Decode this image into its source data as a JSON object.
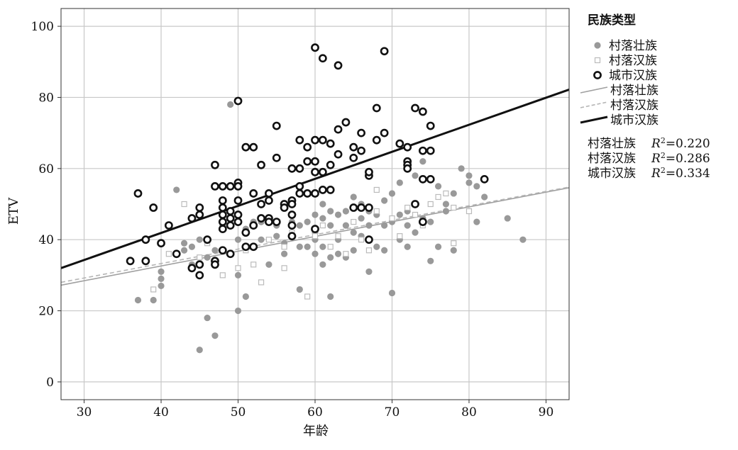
{
  "chart_data": {
    "type": "scatter",
    "xlabel": "年龄",
    "ylabel": "ETV",
    "xlim": [
      27,
      93
    ],
    "ylim": [
      -5,
      105
    ],
    "x_ticks": [
      30,
      40,
      50,
      60,
      70,
      80,
      90
    ],
    "y_ticks": [
      0,
      20,
      40,
      60,
      80,
      100
    ],
    "grid": true,
    "legend_title": "民族类型",
    "legend_position": "right",
    "series": [
      {
        "name": "村落壮族",
        "marker": "filled-circle",
        "color": "#999999",
        "points": [
          [
            37,
            23
          ],
          [
            39,
            23
          ],
          [
            40,
            27
          ],
          [
            40,
            29
          ],
          [
            40,
            31
          ],
          [
            42,
            54
          ],
          [
            43,
            39
          ],
          [
            43,
            37
          ],
          [
            44,
            38
          ],
          [
            44,
            33
          ],
          [
            45,
            9
          ],
          [
            45,
            40
          ],
          [
            46,
            18
          ],
          [
            46,
            35
          ],
          [
            47,
            13
          ],
          [
            47,
            37
          ],
          [
            48,
            37
          ],
          [
            48,
            44
          ],
          [
            49,
            78
          ],
          [
            49,
            46
          ],
          [
            50,
            20
          ],
          [
            50,
            30
          ],
          [
            50,
            40
          ],
          [
            50,
            45
          ],
          [
            51,
            24
          ],
          [
            51,
            43
          ],
          [
            52,
            45
          ],
          [
            52,
            38
          ],
          [
            53,
            40
          ],
          [
            53,
            45
          ],
          [
            54,
            33
          ],
          [
            55,
            44
          ],
          [
            55,
            41
          ],
          [
            56,
            36
          ],
          [
            56,
            39
          ],
          [
            57,
            41
          ],
          [
            57,
            45
          ],
          [
            58,
            38
          ],
          [
            58,
            26
          ],
          [
            58,
            44
          ],
          [
            59,
            38
          ],
          [
            59,
            45
          ],
          [
            60,
            36
          ],
          [
            60,
            47
          ],
          [
            60,
            40
          ],
          [
            60,
            42
          ],
          [
            61,
            33
          ],
          [
            61,
            46
          ],
          [
            61,
            50
          ],
          [
            61,
            38
          ],
          [
            62,
            24
          ],
          [
            62,
            35
          ],
          [
            62,
            48
          ],
          [
            62,
            44
          ],
          [
            63,
            36
          ],
          [
            63,
            40
          ],
          [
            63,
            47
          ],
          [
            64,
            35
          ],
          [
            64,
            44
          ],
          [
            64,
            48
          ],
          [
            65,
            37
          ],
          [
            65,
            42
          ],
          [
            65,
            52
          ],
          [
            66,
            41
          ],
          [
            66,
            46
          ],
          [
            66,
            50
          ],
          [
            67,
            31
          ],
          [
            67,
            44
          ],
          [
            67,
            48
          ],
          [
            68,
            38
          ],
          [
            68,
            47
          ],
          [
            69,
            37
          ],
          [
            69,
            44
          ],
          [
            69,
            51
          ],
          [
            70,
            25
          ],
          [
            70,
            45
          ],
          [
            70,
            53
          ],
          [
            71,
            40
          ],
          [
            71,
            47
          ],
          [
            71,
            56
          ],
          [
            72,
            38
          ],
          [
            72,
            44
          ],
          [
            72,
            48
          ],
          [
            73,
            42
          ],
          [
            73,
            58
          ],
          [
            74,
            46
          ],
          [
            74,
            62
          ],
          [
            75,
            34
          ],
          [
            75,
            45
          ],
          [
            76,
            38
          ],
          [
            76,
            55
          ],
          [
            77,
            48
          ],
          [
            77,
            50
          ],
          [
            78,
            37
          ],
          [
            78,
            53
          ],
          [
            79,
            60
          ],
          [
            80,
            58
          ],
          [
            80,
            56
          ],
          [
            81,
            45
          ],
          [
            81,
            55
          ],
          [
            82,
            52
          ],
          [
            85,
            46
          ],
          [
            87,
            40
          ]
        ]
      },
      {
        "name": "村落汉族",
        "marker": "hollow-square",
        "color": "#bbbbbb",
        "points": [
          [
            38,
            34
          ],
          [
            39,
            26
          ],
          [
            41,
            36
          ],
          [
            43,
            50
          ],
          [
            45,
            35
          ],
          [
            46,
            39
          ],
          [
            48,
            30
          ],
          [
            50,
            32
          ],
          [
            51,
            37
          ],
          [
            52,
            33
          ],
          [
            53,
            28
          ],
          [
            54,
            40
          ],
          [
            56,
            32
          ],
          [
            56,
            38
          ],
          [
            57,
            42
          ],
          [
            59,
            24
          ],
          [
            60,
            41
          ],
          [
            61,
            44
          ],
          [
            62,
            38
          ],
          [
            63,
            41
          ],
          [
            64,
            36
          ],
          [
            65,
            45
          ],
          [
            66,
            40
          ],
          [
            67,
            37
          ],
          [
            68,
            48
          ],
          [
            68,
            54
          ],
          [
            70,
            46
          ],
          [
            71,
            41
          ],
          [
            72,
            49
          ],
          [
            73,
            47
          ],
          [
            74,
            44
          ],
          [
            75,
            50
          ],
          [
            76,
            52
          ],
          [
            77,
            53
          ],
          [
            78,
            49
          ],
          [
            78,
            39
          ],
          [
            80,
            48
          ]
        ]
      },
      {
        "name": "城市汉族",
        "marker": "hollow-circle",
        "color": "#111111",
        "points": [
          [
            36,
            34
          ],
          [
            37,
            53
          ],
          [
            38,
            40
          ],
          [
            38,
            34
          ],
          [
            39,
            49
          ],
          [
            40,
            39
          ],
          [
            41,
            44
          ],
          [
            42,
            36
          ],
          [
            44,
            46
          ],
          [
            44,
            32
          ],
          [
            45,
            33
          ],
          [
            45,
            30
          ],
          [
            45,
            47
          ],
          [
            45,
            49
          ],
          [
            46,
            40
          ],
          [
            47,
            61
          ],
          [
            47,
            55
          ],
          [
            47,
            34
          ],
          [
            47,
            33
          ],
          [
            48,
            55
          ],
          [
            48,
            51
          ],
          [
            48,
            49
          ],
          [
            48,
            47
          ],
          [
            48,
            45
          ],
          [
            48,
            43
          ],
          [
            48,
            37
          ],
          [
            49,
            55
          ],
          [
            49,
            48
          ],
          [
            49,
            46
          ],
          [
            49,
            44
          ],
          [
            49,
            36
          ],
          [
            50,
            79
          ],
          [
            50,
            56
          ],
          [
            50,
            55
          ],
          [
            50,
            51
          ],
          [
            50,
            47
          ],
          [
            50,
            45
          ],
          [
            51,
            66
          ],
          [
            51,
            42
          ],
          [
            51,
            38
          ],
          [
            52,
            66
          ],
          [
            52,
            53
          ],
          [
            52,
            44
          ],
          [
            52,
            38
          ],
          [
            53,
            61
          ],
          [
            53,
            50
          ],
          [
            53,
            46
          ],
          [
            54,
            53
          ],
          [
            54,
            51
          ],
          [
            54,
            46
          ],
          [
            54,
            45
          ],
          [
            55,
            72
          ],
          [
            55,
            63
          ],
          [
            55,
            45
          ],
          [
            56,
            50
          ],
          [
            56,
            49
          ],
          [
            57,
            60
          ],
          [
            57,
            51
          ],
          [
            57,
            50
          ],
          [
            57,
            47
          ],
          [
            57,
            44
          ],
          [
            57,
            41
          ],
          [
            58,
            68
          ],
          [
            58,
            60
          ],
          [
            58,
            55
          ],
          [
            58,
            53
          ],
          [
            59,
            66
          ],
          [
            59,
            62
          ],
          [
            59,
            53
          ],
          [
            60,
            94
          ],
          [
            60,
            68
          ],
          [
            60,
            62
          ],
          [
            60,
            59
          ],
          [
            60,
            53
          ],
          [
            60,
            43
          ],
          [
            61,
            91
          ],
          [
            61,
            68
          ],
          [
            61,
            59
          ],
          [
            61,
            54
          ],
          [
            62,
            67
          ],
          [
            62,
            61
          ],
          [
            62,
            54
          ],
          [
            63,
            89
          ],
          [
            63,
            71
          ],
          [
            63,
            64
          ],
          [
            64,
            73
          ],
          [
            65,
            66
          ],
          [
            65,
            63
          ],
          [
            65,
            49
          ],
          [
            66,
            70
          ],
          [
            66,
            65
          ],
          [
            66,
            49
          ],
          [
            67,
            58
          ],
          [
            67,
            59
          ],
          [
            67,
            49
          ],
          [
            67,
            40
          ],
          [
            68,
            77
          ],
          [
            68,
            68
          ],
          [
            69,
            93
          ],
          [
            69,
            70
          ],
          [
            71,
            67
          ],
          [
            72,
            66
          ],
          [
            72,
            62
          ],
          [
            72,
            61
          ],
          [
            72,
            60
          ],
          [
            73,
            77
          ],
          [
            73,
            50
          ],
          [
            74,
            76
          ],
          [
            74,
            65
          ],
          [
            74,
            57
          ],
          [
            74,
            45
          ],
          [
            75,
            72
          ],
          [
            75,
            65
          ],
          [
            75,
            57
          ],
          [
            82,
            57
          ]
        ]
      }
    ],
    "fit_lines": [
      {
        "name": "村落壮族",
        "style": "solid",
        "color": "#a0a0a0",
        "width": 1.6,
        "points": [
          [
            27,
            27.2
          ],
          [
            93,
            54.6
          ]
        ]
      },
      {
        "name": "村落汉族",
        "style": "dashed",
        "color": "#b5b5b5",
        "width": 1.6,
        "points": [
          [
            27,
            28.0
          ],
          [
            93,
            54.8
          ]
        ]
      },
      {
        "name": "城市汉族",
        "style": "solid",
        "color": "#111111",
        "width": 3,
        "points": [
          [
            27,
            32.0
          ],
          [
            93,
            82.2
          ]
        ]
      }
    ],
    "r_squared": [
      {
        "label": "村落壮族",
        "r2_prefix": "R",
        "r2_sup": "2",
        "r2_value": "=0.220"
      },
      {
        "label": "村落汉族",
        "r2_prefix": "R",
        "r2_sup": "2",
        "r2_value": "=0.286"
      },
      {
        "label": "城市汉族",
        "r2_prefix": "R",
        "r2_sup": "2",
        "r2_value": "=0.334"
      }
    ]
  }
}
